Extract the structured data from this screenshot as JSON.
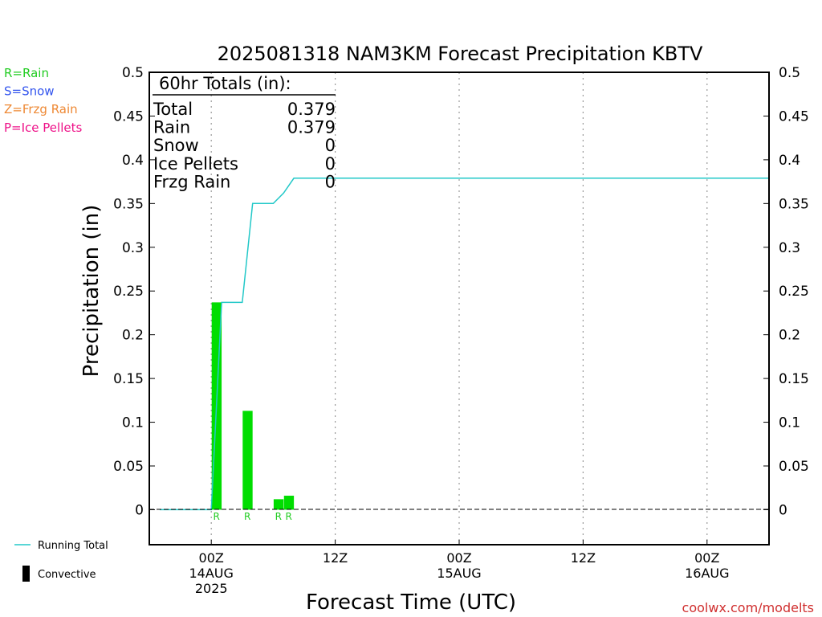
{
  "chart_data": {
    "type": "bar",
    "title": "2025081318 NAM3KM Forecast Precipitation KBTV",
    "xlabel": "Forecast Time (UTC)",
    "ylabel": "Precipitation (in)",
    "ylim": [
      -0.04,
      0.5
    ],
    "yticks": [
      "0",
      "0.05",
      "0.1",
      "0.15",
      "0.2",
      "0.25",
      "0.3",
      "0.35",
      "0.4",
      "0.45",
      "0.5"
    ],
    "xlim": [
      "2025-08-13T18:00Z",
      "2025-08-16T06:00Z"
    ],
    "xticks": [
      {
        "time": "2025-08-14T00:00Z",
        "lines": [
          "00Z",
          "14AUG",
          "2025"
        ]
      },
      {
        "time": "2025-08-14T12:00Z",
        "lines": [
          "12Z"
        ]
      },
      {
        "time": "2025-08-15T00:00Z",
        "lines": [
          "00Z",
          "15AUG"
        ]
      },
      {
        "time": "2025-08-15T12:00Z",
        "lines": [
          "12Z"
        ]
      },
      {
        "time": "2025-08-16T00:00Z",
        "lines": [
          "00Z",
          "16AUG"
        ]
      }
    ],
    "grid": "vertical dotted",
    "bars": [
      {
        "time": "2025-08-14T01:00Z",
        "value": 0.237,
        "ptype": "R"
      },
      {
        "time": "2025-08-14T04:00Z",
        "value": 0.113,
        "ptype": "R"
      },
      {
        "time": "2025-08-14T07:00Z",
        "value": 0.012,
        "ptype": "R"
      },
      {
        "time": "2025-08-14T08:00Z",
        "value": 0.016,
        "ptype": "R"
      }
    ],
    "running_total": {
      "name": "Running Total",
      "points": [
        {
          "time": "2025-08-13T19:00Z",
          "value": 0
        },
        {
          "time": "2025-08-14T00:00Z",
          "value": 0
        },
        {
          "time": "2025-08-14T01:00Z",
          "value": 0.237
        },
        {
          "time": "2025-08-14T03:00Z",
          "value": 0.237
        },
        {
          "time": "2025-08-14T04:00Z",
          "value": 0.35
        },
        {
          "time": "2025-08-14T06:00Z",
          "value": 0.35
        },
        {
          "time": "2025-08-14T07:00Z",
          "value": 0.362
        },
        {
          "time": "2025-08-14T08:00Z",
          "value": 0.379
        },
        {
          "time": "2025-08-16T06:00Z",
          "value": 0.379
        }
      ]
    },
    "totals_box": {
      "heading": "60hr Totals (in):",
      "rows": [
        {
          "label": "Total",
          "value": "0.379"
        },
        {
          "label": "Rain",
          "value": "0.379"
        },
        {
          "label": "Snow",
          "value": "0"
        },
        {
          "label": "Ice Pellets",
          "value": "0"
        },
        {
          "label": "Frzg Rain",
          "value": "0"
        }
      ]
    },
    "ptype_legend": [
      {
        "text": "R=Rain",
        "color": "#22cc22"
      },
      {
        "text": "S=Snow",
        "color": "#3355ee"
      },
      {
        "text": "Z=Frzg Rain",
        "color": "#ee8833"
      },
      {
        "text": "P=Ice Pellets",
        "color": "#ee1188"
      }
    ],
    "bottom_legend": [
      {
        "text": "Running Total",
        "symbol": "line",
        "color": "#22c8c8"
      },
      {
        "text": "Convective",
        "symbol": "bar",
        "color": "#000000"
      }
    ],
    "colors": {
      "bar": "#00dd00",
      "running_total": "#22c8c8",
      "grid": "#999999"
    },
    "credit": "coolwx.com/modelts"
  }
}
